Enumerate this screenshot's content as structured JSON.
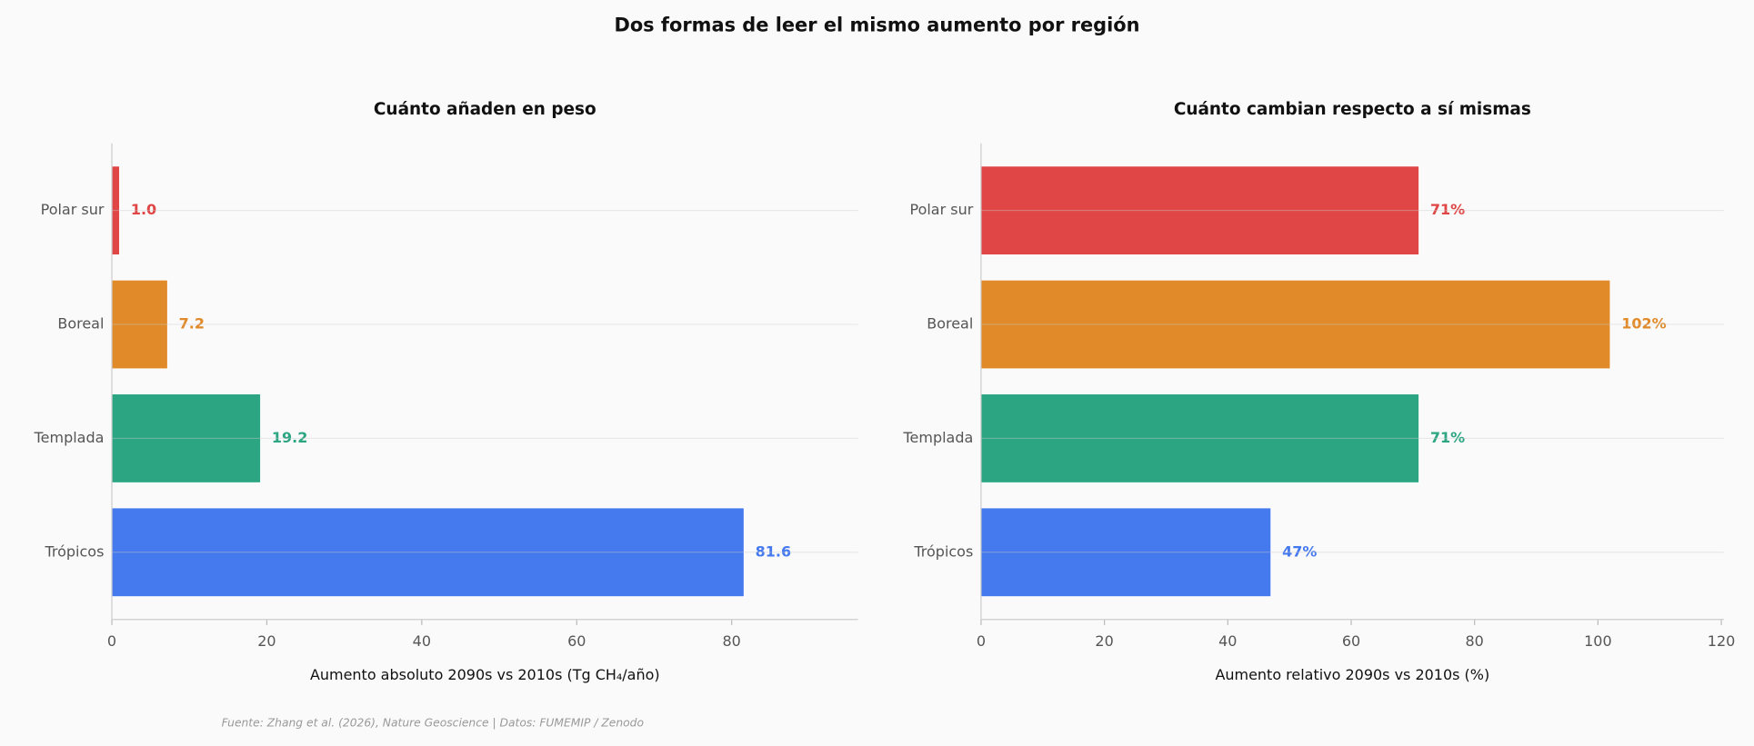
{
  "title": "Dos formas de leer el mismo aumento por región",
  "source": "Fuente: Zhang et al. (2026), Nature Geoscience | Datos: FUMEMIP / Zenodo",
  "chart_data": [
    {
      "type": "bar",
      "orientation": "horizontal",
      "title": "Cuánto añaden en peso",
      "xlabel": "Aumento absoluto 2090s vs 2010s (Tg CH₄/año)",
      "categories": [
        "Polar sur",
        "Boreal",
        "Templada",
        "Trópicos"
      ],
      "values": [
        1.0,
        7.2,
        19.2,
        81.6
      ],
      "value_labels": [
        "1.0",
        "7.2",
        "19.2",
        "81.6"
      ],
      "colors": [
        "#e04646",
        "#e08a2a",
        "#2ba582",
        "#4579ee"
      ],
      "xlim": [
        0,
        96.3
      ],
      "xticks": [
        0,
        20,
        40,
        60,
        80
      ],
      "grid": true
    },
    {
      "type": "bar",
      "orientation": "horizontal",
      "title": "Cuánto cambian respecto a sí mismas",
      "xlabel": "Aumento relativo 2090s vs 2010s (%)",
      "categories": [
        "Polar sur",
        "Boreal",
        "Templada",
        "Trópicos"
      ],
      "values": [
        71,
        102,
        71,
        47
      ],
      "value_labels": [
        "71%",
        "102%",
        "71%",
        "47%"
      ],
      "colors": [
        "#e04646",
        "#e08a2a",
        "#2ba582",
        "#4579ee"
      ],
      "xlim": [
        0,
        120.4
      ],
      "xticks": [
        0,
        20,
        40,
        60,
        80,
        100,
        120
      ],
      "grid": true
    }
  ]
}
